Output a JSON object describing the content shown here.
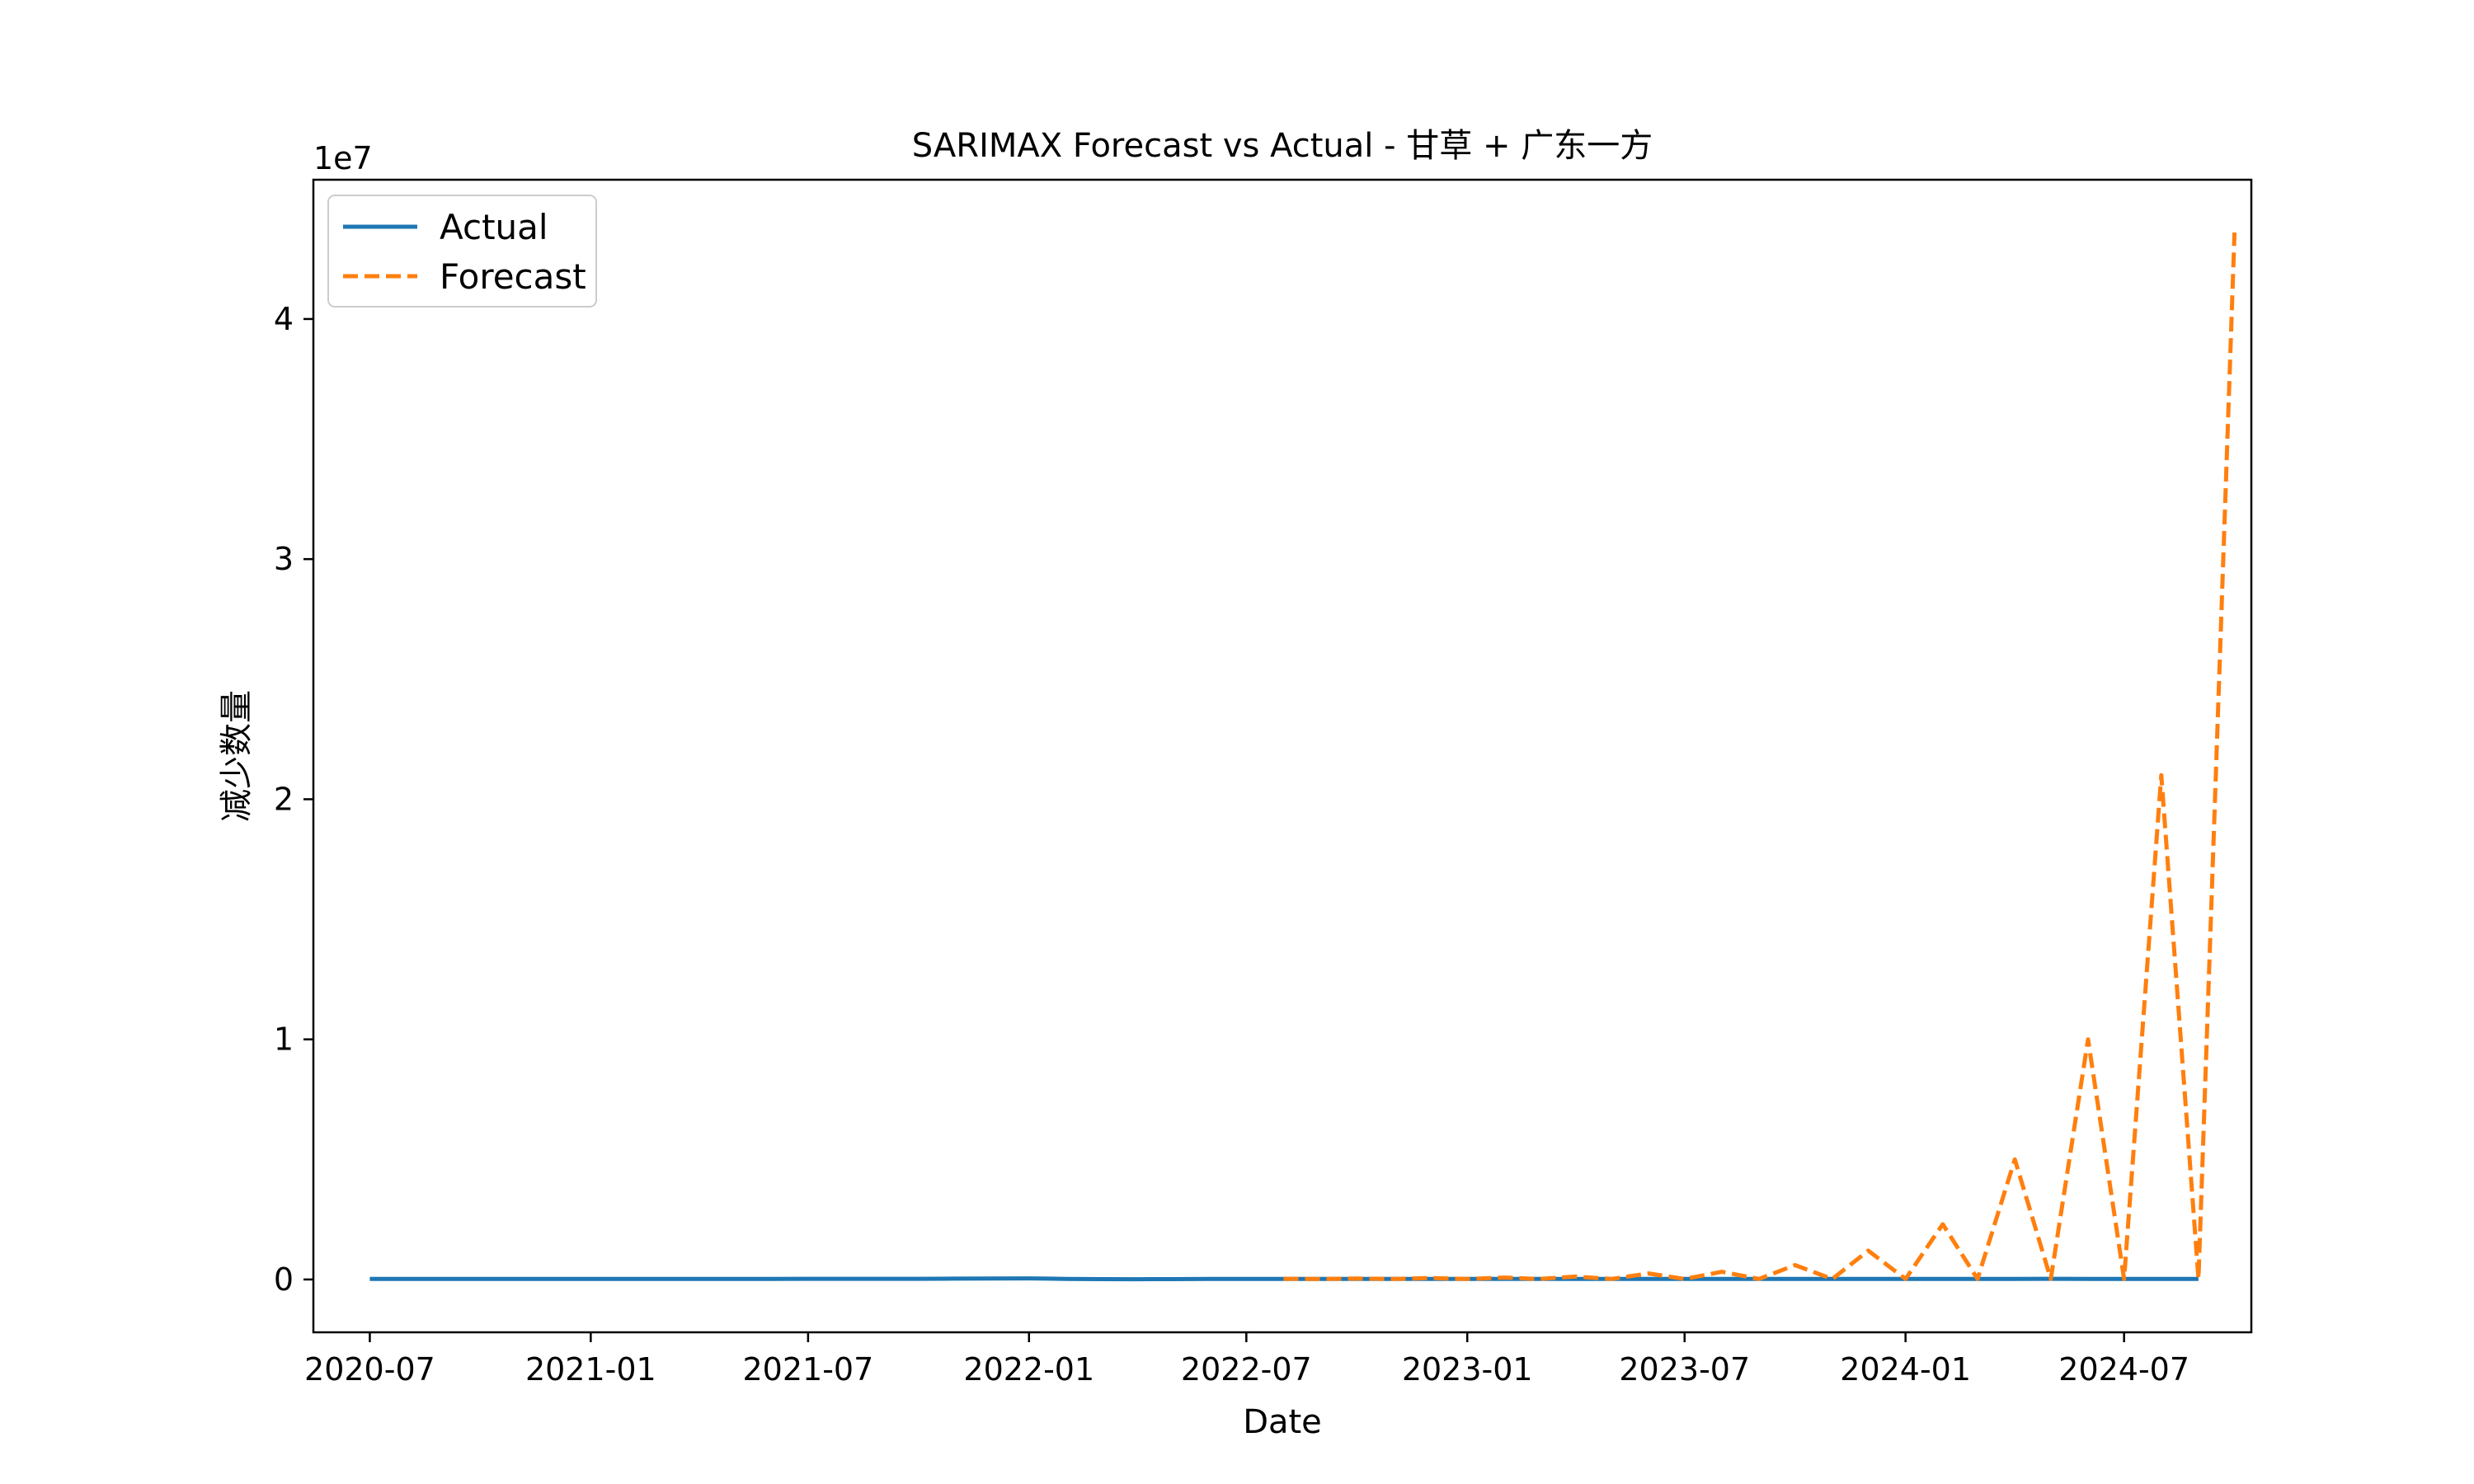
{
  "chart_data": {
    "type": "line",
    "title": "SARIMAX Forecast vs Actual - 甘草 + 广东一方",
    "xlabel": "Date",
    "ylabel": "减少数量",
    "y_multiplier_label": "1e7",
    "xlim": [
      "2020-05-15",
      "2024-10-15"
    ],
    "ylim": [
      -2200000,
      45800000
    ],
    "x_ticks": [
      "2020-07",
      "2021-01",
      "2021-07",
      "2022-01",
      "2022-07",
      "2023-01",
      "2023-07",
      "2024-01",
      "2024-07"
    ],
    "y_ticks": [
      {
        "value": 0,
        "label": "0"
      },
      {
        "value": 10000000,
        "label": "1"
      },
      {
        "value": 20000000,
        "label": "2"
      },
      {
        "value": 30000000,
        "label": "3"
      },
      {
        "value": 40000000,
        "label": "4"
      }
    ],
    "grid": false,
    "legend_position": "upper-left",
    "series": [
      {
        "name": "Actual",
        "color": "#1f77b4",
        "style": "solid",
        "points": [
          [
            "2020-07-01",
            20000
          ],
          [
            "2020-08-01",
            20000
          ],
          [
            "2020-09-01",
            20000
          ],
          [
            "2020-10-01",
            20000
          ],
          [
            "2020-11-01",
            20000
          ],
          [
            "2020-12-01",
            20000
          ],
          [
            "2021-01-01",
            20000
          ],
          [
            "2021-02-01",
            20000
          ],
          [
            "2021-03-01",
            20000
          ],
          [
            "2021-04-01",
            25000
          ],
          [
            "2021-05-01",
            25000
          ],
          [
            "2021-06-01",
            25000
          ],
          [
            "2021-07-01",
            30000
          ],
          [
            "2021-08-01",
            30000
          ],
          [
            "2021-09-01",
            30000
          ],
          [
            "2021-10-01",
            30000
          ],
          [
            "2021-11-01",
            35000
          ],
          [
            "2021-12-01",
            40000
          ],
          [
            "2022-01-01",
            45000
          ],
          [
            "2022-02-01",
            25000
          ],
          [
            "2022-03-01",
            15000
          ],
          [
            "2022-04-01",
            10000
          ],
          [
            "2022-05-01",
            15000
          ],
          [
            "2022-06-01",
            20000
          ],
          [
            "2022-07-01",
            20000
          ],
          [
            "2022-08-01",
            20000
          ],
          [
            "2022-09-01",
            20000
          ],
          [
            "2022-10-01",
            20000
          ],
          [
            "2022-11-01",
            20000
          ],
          [
            "2022-12-01",
            20000
          ],
          [
            "2023-01-01",
            20000
          ],
          [
            "2023-02-01",
            20000
          ],
          [
            "2023-03-01",
            20000
          ],
          [
            "2023-04-01",
            20000
          ],
          [
            "2023-05-01",
            20000
          ],
          [
            "2023-06-01",
            20000
          ],
          [
            "2023-07-01",
            20000
          ],
          [
            "2023-08-01",
            20000
          ],
          [
            "2023-09-01",
            20000
          ],
          [
            "2023-10-01",
            20000
          ],
          [
            "2023-11-01",
            20000
          ],
          [
            "2023-12-01",
            20000
          ],
          [
            "2024-01-01",
            20000
          ],
          [
            "2024-02-01",
            20000
          ],
          [
            "2024-03-01",
            20000
          ],
          [
            "2024-04-01",
            20000
          ],
          [
            "2024-05-01",
            30000
          ],
          [
            "2024-06-01",
            20000
          ],
          [
            "2024-07-01",
            20000
          ],
          [
            "2024-08-01",
            20000
          ],
          [
            "2024-09-01",
            20000
          ]
        ]
      },
      {
        "name": "Forecast",
        "color": "#ff7f0e",
        "style": "dashed",
        "points": [
          [
            "2022-08-01",
            30000
          ],
          [
            "2022-09-01",
            20000
          ],
          [
            "2022-10-01",
            40000
          ],
          [
            "2022-11-01",
            20000
          ],
          [
            "2022-12-01",
            60000
          ],
          [
            "2023-01-01",
            20000
          ],
          [
            "2023-02-01",
            80000
          ],
          [
            "2023-03-01",
            20000
          ],
          [
            "2023-04-01",
            120000
          ],
          [
            "2023-05-01",
            20000
          ],
          [
            "2023-06-01",
            250000
          ],
          [
            "2023-07-01",
            20000
          ],
          [
            "2023-08-01",
            320000
          ],
          [
            "2023-09-01",
            20000
          ],
          [
            "2023-10-01",
            600000
          ],
          [
            "2023-11-01",
            20000
          ],
          [
            "2023-12-01",
            1200000
          ],
          [
            "2024-01-01",
            20000
          ],
          [
            "2024-02-01",
            2300000
          ],
          [
            "2024-03-01",
            20000
          ],
          [
            "2024-04-01",
            5000000
          ],
          [
            "2024-05-01",
            20000
          ],
          [
            "2024-06-01",
            10000000
          ],
          [
            "2024-07-01",
            20000
          ],
          [
            "2024-08-01",
            21000000
          ],
          [
            "2024-09-01",
            20000
          ],
          [
            "2024-10-01",
            43600000
          ]
        ]
      }
    ]
  }
}
